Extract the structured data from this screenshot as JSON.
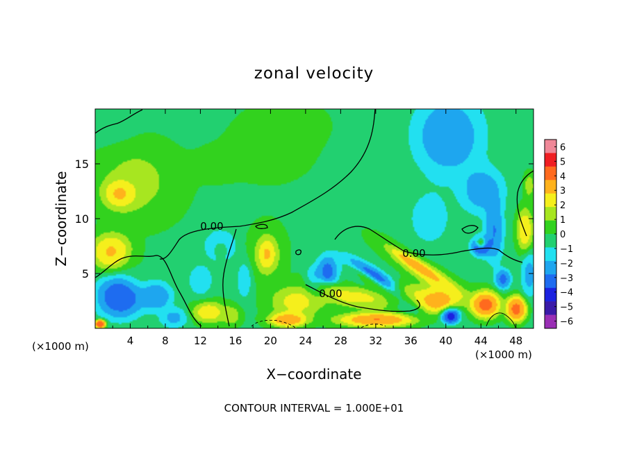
{
  "chart_data": {
    "type": "heatmap",
    "title": "zonal velocity",
    "xlabel": "X−coordinate",
    "ylabel": "Z−coordinate",
    "x_unit_left": "(×1000 m)",
    "x_unit_right": "(×1000 m)",
    "xlim": [
      0,
      50
    ],
    "ylim": [
      0,
      20
    ],
    "x_ticks": [
      "4",
      "8",
      "12",
      "16",
      "20",
      "24",
      "28",
      "32",
      "36",
      "40",
      "44",
      "48"
    ],
    "y_ticks": [
      "5",
      "10",
      "15"
    ],
    "colorbar_ticks": [
      "6",
      "5",
      "4",
      "3",
      "2",
      "1",
      "0",
      "−1",
      "−2",
      "−3",
      "−4",
      "−5",
      "−6"
    ],
    "colorbar_range": [
      -6,
      6
    ],
    "colors": [
      "#9a2fb5",
      "#3a1aa8",
      "#1b22e0",
      "#1e6cf0",
      "#1ea6ef",
      "#22e0f0",
      "#22d070",
      "#32d21e",
      "#a7e620",
      "#f5ef1c",
      "#ffb21c",
      "#ff6a1e",
      "#ef1e22",
      "#ef8898"
    ],
    "contour_labels": [
      "0.00",
      "0.00",
      "0.00"
    ],
    "footer": "CONTOUR INTERVAL = 1.000E+01",
    "blobs": [
      {
        "x": 25,
        "y": 10,
        "v": 1.0,
        "rx": 40,
        "ry": 18
      },
      {
        "x": 5,
        "y": 13.2,
        "v": 3.0,
        "rx": 6,
        "ry": 4.5
      },
      {
        "x": 3,
        "y": 12.3,
        "v": 6.5,
        "rx": 2.6,
        "ry": 1.8
      },
      {
        "x": 2,
        "y": 7.0,
        "v": 5.5,
        "rx": 3.0,
        "ry": 2.2
      },
      {
        "x": 7,
        "y": 5.5,
        "v": 1.0,
        "rx": 5,
        "ry": 3
      },
      {
        "x": 20,
        "y": 16.5,
        "v": 2.2,
        "rx": 5.5,
        "ry": 3.5
      },
      {
        "x": 22,
        "y": 18.5,
        "v": 1.5,
        "rx": 6,
        "ry": 3
      },
      {
        "x": 14,
        "y": 15,
        "v": 1.2,
        "rx": 5,
        "ry": 3
      },
      {
        "x": 1.5,
        "y": 18.5,
        "v": 0.3,
        "rx": 4,
        "ry": 2
      },
      {
        "x": 40,
        "y": 17,
        "v": -3.0,
        "rx": 5.5,
        "ry": 5
      },
      {
        "x": 44,
        "y": 12.5,
        "v": -3.0,
        "rx": 3.5,
        "ry": 3
      },
      {
        "x": 38,
        "y": 10,
        "v": -1.5,
        "rx": 4,
        "ry": 4
      },
      {
        "x": 45.5,
        "y": 9,
        "v": -3.5,
        "rx": 1.5,
        "ry": 4
      },
      {
        "x": 49,
        "y": 9,
        "v": 5.0,
        "rx": 1.2,
        "ry": 2.5
      },
      {
        "x": 49.5,
        "y": 13,
        "v": 3.0,
        "rx": 0.8,
        "ry": 1.5
      },
      {
        "x": 44,
        "y": 7.5,
        "v": -5.5,
        "rx": 1.6,
        "ry": 1.3
      },
      {
        "x": 44,
        "y": 7.8,
        "v": 7.0,
        "rx": 0.8,
        "ry": 0.6
      },
      {
        "x": 14.3,
        "y": 7.5,
        "v": -5.5,
        "rx": 2.2,
        "ry": 1.8
      },
      {
        "x": 14.3,
        "y": 7.3,
        "v": 7.0,
        "rx": 1.3,
        "ry": 1.2
      },
      {
        "x": 12,
        "y": 4.5,
        "v": -2.0,
        "rx": 2,
        "ry": 2
      },
      {
        "x": 19.6,
        "y": 6.8,
        "v": 4.5,
        "rx": 2.4,
        "ry": 3.0
      },
      {
        "x": 19.6,
        "y": 6.8,
        "v": 7.0,
        "rx": 1.3,
        "ry": 1.8
      },
      {
        "x": 17,
        "y": 4.5,
        "v": -2.0,
        "rx": 1.2,
        "ry": 2.5
      },
      {
        "x": 3,
        "y": 3,
        "v": -4.0,
        "rx": 3.5,
        "ry": 2.5
      },
      {
        "x": 7,
        "y": 3.2,
        "v": -3.5,
        "rx": 2.5,
        "ry": 2
      },
      {
        "x": 9,
        "y": 1,
        "v": -2.0,
        "rx": 2,
        "ry": 1.2
      },
      {
        "x": 13,
        "y": 1.5,
        "v": 5.0,
        "rx": 2.5,
        "ry": 1.3
      },
      {
        "x": 15.5,
        "y": 1.2,
        "v": 3.5,
        "rx": 1.5,
        "ry": 1.2
      },
      {
        "x": 23,
        "y": 2.5,
        "v": 5.0,
        "rx": 4,
        "ry": 2
      },
      {
        "x": 22,
        "y": 0.8,
        "v": 7.0,
        "rx": 3,
        "ry": 0.9
      },
      {
        "x": 25,
        "y": 4.5,
        "v": -2.5,
        "rx": 1.5,
        "ry": 2
      },
      {
        "x": 33,
        "y": 3.0,
        "v": 5.0,
        "rx": 10,
        "ry": 1.6
      },
      {
        "x": 32,
        "y": 0.8,
        "v": 7.0,
        "rx": 6,
        "ry": 0.9
      },
      {
        "x": 26.5,
        "y": 5.2,
        "v": -5.5,
        "rx": 1.8,
        "ry": 2.3
      },
      {
        "x": 39,
        "y": 2.5,
        "v": 6.5,
        "rx": 3,
        "ry": 1.5
      },
      {
        "x": 40.5,
        "y": 1.2,
        "v": -5.5,
        "rx": 1.4,
        "ry": 1.0
      },
      {
        "x": 44.5,
        "y": 2.2,
        "v": 7.0,
        "rx": 2.2,
        "ry": 1.6
      },
      {
        "x": 48,
        "y": 1.8,
        "v": 6.5,
        "rx": 1.5,
        "ry": 1.5
      },
      {
        "x": 49.5,
        "y": 5,
        "v": -2.0,
        "rx": 1.2,
        "ry": 2.5
      },
      {
        "x": 0.6,
        "y": 0.4,
        "v": 7.0,
        "rx": 0.8,
        "ry": 0.5
      },
      {
        "x": 46.5,
        "y": 4.5,
        "v": -3.5,
        "rx": 1.2,
        "ry": 1.2
      }
    ],
    "bands": [
      {
        "x": 32,
        "y": 4.3,
        "angle": -29,
        "a": 5.8,
        "b": 1.4,
        "v": -5.5
      },
      {
        "x": 31.5,
        "y": 4.2,
        "angle": -29,
        "a": 4.0,
        "b": 0.75,
        "v": 7.0
      },
      {
        "x": 37.5,
        "y": 5.2,
        "angle": -27,
        "a": 6.5,
        "b": 1.2,
        "v": 5.0
      },
      {
        "x": 36.5,
        "y": 5.8,
        "angle": -27,
        "a": 3.8,
        "b": 0.55,
        "v": 7.0
      },
      {
        "x": 27.5,
        "y": 3.3,
        "angle": -18,
        "a": 4,
        "b": 0.9,
        "v": 4.0
      }
    ]
  }
}
